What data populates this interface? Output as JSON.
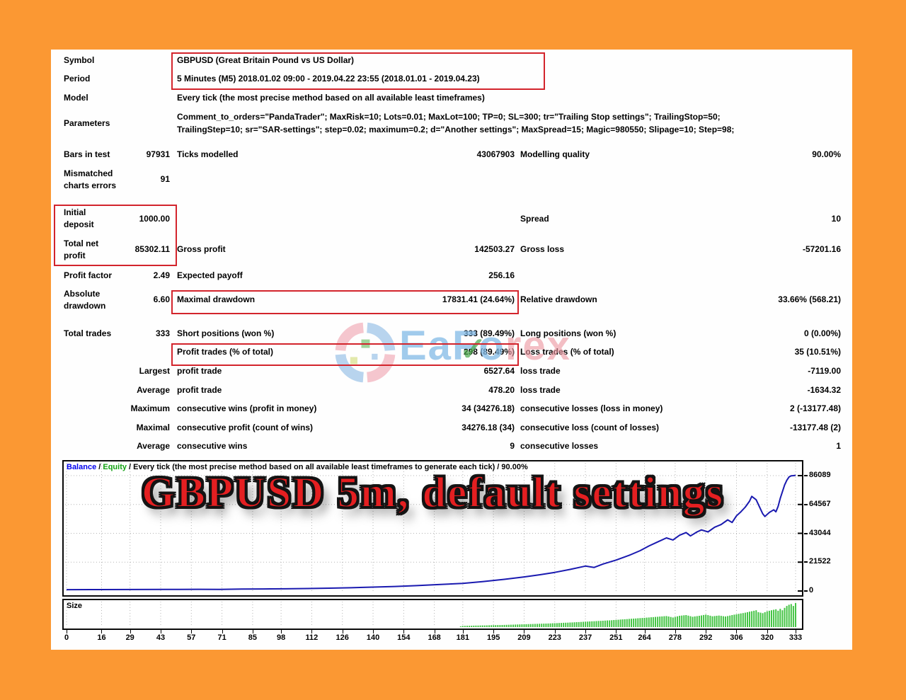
{
  "colors": {
    "background_orange": "#fb9833",
    "highlight_red": "#d3242c",
    "title_red": "#e41f21",
    "balance_blue": "#0000ee",
    "equity_green": "#12a112"
  },
  "report": {
    "symbol_label": "Symbol",
    "symbol_value": "GBPUSD (Great Britain Pound vs US Dollar)",
    "period_label": "Period",
    "period_value": "5 Minutes (M5) 2018.01.02 09:00 - 2019.04.22 23:55 (2018.01.01 - 2019.04.23)",
    "model_label": "Model",
    "model_value": "Every tick (the most precise method based on all available least timeframes)",
    "parameters_label": "Parameters",
    "parameters_line1": "Comment_to_orders=\"PandaTrader\"; MaxRisk=10; Lots=0.01; MaxLot=100; TP=0; SL=300; tr=\"Trailing Stop settings\"; TrailingStop=50;",
    "parameters_line2": "TrailingStep=10; sr=\"SAR-settings\"; step=0.02; maximum=0.2; d=\"Another settings\"; MaxSpread=15; Magic=980550; Slipage=10; Step=98;",
    "bars_label": "Bars in test",
    "bars_value": "97931",
    "ticks_label": "Ticks modelled",
    "ticks_value": "43067903",
    "quality_label": "Modelling quality",
    "quality_value": "90.00%",
    "mismatched_label": "Mismatched charts errors",
    "mismatched_value": "91",
    "initial_label": "Initial deposit",
    "initial_value": "1000.00",
    "spread_label": "Spread",
    "spread_value": "10",
    "netprofit_label": "Total net profit",
    "netprofit_value": "85302.11",
    "grossprofit_label": "Gross profit",
    "grossprofit_value": "142503.27",
    "grossloss_label": "Gross loss",
    "grossloss_value": "-57201.16",
    "pf_label": "Profit factor",
    "pf_value": "2.49",
    "payoff_label": "Expected payoff",
    "payoff_value": "256.16",
    "absdd_label": "Absolute drawdown",
    "absdd_value": "6.60",
    "maxdd_label": "Maximal drawdown",
    "maxdd_value": "17831.41 (24.64%)",
    "reldd_label": "Relative drawdown",
    "reldd_value": "33.66% (568.21)",
    "trades_label": "Total trades",
    "trades_value": "333",
    "short_label": "Short positions (won %)",
    "short_value": "333 (89.49%)",
    "long_label": "Long positions (won %)",
    "long_value": "0 (0.00%)",
    "profittrades_label": "Profit trades (% of total)",
    "profittrades_value": "298 (89.49%)",
    "losstrades_label": "Loss trades (% of total)",
    "losstrades_value": "35 (10.51%)",
    "largest_label": "Largest",
    "largest_profit_label": "profit trade",
    "largest_profit_value": "6527.64",
    "largest_loss_label": "loss trade",
    "largest_loss_value": "-7119.00",
    "average_label": "Average",
    "average_profit_label": "profit trade",
    "average_profit_value": "478.20",
    "average_loss_label": "loss trade",
    "average_loss_value": "-1634.32",
    "maximum_label": "Maximum",
    "maxwins_label": "consecutive wins (profit in money)",
    "maxwins_value": "34 (34276.18)",
    "maxlosses_label": "consecutive losses (loss in money)",
    "maxlosses_value": "2 (-13177.48)",
    "maximal_label": "Maximal",
    "maxprofit_label": "consecutive profit (count of wins)",
    "maxprofit_value": "34276.18 (34)",
    "maxloss_label": "consecutive loss (count of losses)",
    "maxloss_value": "-13177.48 (2)",
    "avgcons_label": "Average",
    "avgwins_label": "consecutive wins",
    "avgwins_value": "9",
    "avglosses_label": "consecutive losses",
    "avglosses_value": "1"
  },
  "watermark": {
    "text_left": "EaFo",
    "text_right": "rex",
    "check": "✓"
  },
  "overlay_title": "GBPUSD 5m, default settings",
  "chart_data": {
    "type": "line",
    "header": {
      "balance_label": "Balance",
      "sep1": " / ",
      "equity_label": "Equity",
      "rest": " / Every tick (the most precise method based on all available least timeframes to generate each tick) / 90.00%"
    },
    "size_label": "Size",
    "line_color": "#1a1ab0",
    "bar_color": "#45c445",
    "grid_color": "#b4b4b4",
    "x_max": 333,
    "x_ticks": [
      0,
      16,
      29,
      43,
      57,
      71,
      85,
      98,
      112,
      126,
      140,
      154,
      168,
      181,
      195,
      209,
      223,
      237,
      251,
      264,
      278,
      292,
      306,
      320,
      333
    ],
    "y_ticks": [
      86089,
      64567,
      43044,
      21522,
      0
    ],
    "ylim": [
      0,
      86089
    ],
    "balance_series": [
      [
        0,
        1000
      ],
      [
        15,
        1050
      ],
      [
        30,
        1100
      ],
      [
        45,
        1180
      ],
      [
        60,
        1250
      ],
      [
        70,
        1230
      ],
      [
        80,
        1400
      ],
      [
        90,
        1520
      ],
      [
        100,
        1650
      ],
      [
        110,
        1850
      ],
      [
        120,
        2100
      ],
      [
        130,
        2450
      ],
      [
        140,
        2900
      ],
      [
        150,
        3400
      ],
      [
        160,
        4000
      ],
      [
        170,
        4800
      ],
      [
        181,
        5700
      ],
      [
        190,
        7000
      ],
      [
        200,
        8700
      ],
      [
        209,
        10500
      ],
      [
        216,
        12100
      ],
      [
        223,
        13900
      ],
      [
        230,
        16100
      ],
      [
        237,
        18600
      ],
      [
        241,
        17600
      ],
      [
        245,
        20100
      ],
      [
        251,
        23100
      ],
      [
        257,
        26600
      ],
      [
        262,
        30100
      ],
      [
        266,
        33600
      ],
      [
        270,
        36600
      ],
      [
        274,
        39600
      ],
      [
        277,
        38100
      ],
      [
        280,
        41600
      ],
      [
        283,
        43600
      ],
      [
        285,
        41100
      ],
      [
        288,
        44100
      ],
      [
        290,
        45600
      ],
      [
        293,
        44100
      ],
      [
        296,
        47600
      ],
      [
        299,
        49600
      ],
      [
        302,
        53100
      ],
      [
        304,
        51100
      ],
      [
        306,
        56100
      ],
      [
        308,
        59100
      ],
      [
        310,
        62600
      ],
      [
        312,
        67100
      ],
      [
        313,
        70600
      ],
      [
        315,
        68100
      ],
      [
        316,
        64600
      ],
      [
        318,
        57600
      ],
      [
        319,
        55600
      ],
      [
        321,
        58600
      ],
      [
        323,
        60600
      ],
      [
        324,
        59100
      ],
      [
        325,
        63100
      ],
      [
        326,
        69100
      ],
      [
        327,
        74100
      ],
      [
        328,
        79100
      ],
      [
        329,
        82600
      ],
      [
        330,
        85100
      ],
      [
        331,
        86000
      ],
      [
        332,
        86100
      ],
      [
        333,
        86302
      ]
    ],
    "size_points": [
      [
        178,
        0.0
      ],
      [
        181,
        0.05
      ],
      [
        190,
        0.07
      ],
      [
        200,
        0.09
      ],
      [
        210,
        0.12
      ],
      [
        220,
        0.15
      ],
      [
        230,
        0.19
      ],
      [
        240,
        0.24
      ],
      [
        248,
        0.28
      ],
      [
        254,
        0.32
      ],
      [
        260,
        0.36
      ],
      [
        266,
        0.4
      ],
      [
        270,
        0.43
      ],
      [
        274,
        0.46
      ],
      [
        277,
        0.4
      ],
      [
        280,
        0.47
      ],
      [
        283,
        0.5
      ],
      [
        286,
        0.43
      ],
      [
        289,
        0.47
      ],
      [
        292,
        0.52
      ],
      [
        295,
        0.45
      ],
      [
        298,
        0.48
      ],
      [
        301,
        0.44
      ],
      [
        304,
        0.5
      ],
      [
        307,
        0.55
      ],
      [
        310,
        0.6
      ],
      [
        313,
        0.66
      ],
      [
        315,
        0.7
      ],
      [
        316,
        0.62
      ],
      [
        318,
        0.58
      ],
      [
        320,
        0.66
      ],
      [
        322,
        0.7
      ],
      [
        324,
        0.74
      ],
      [
        325,
        0.68
      ],
      [
        326,
        0.76
      ],
      [
        327,
        0.7
      ],
      [
        328,
        0.8
      ],
      [
        329,
        0.88
      ],
      [
        330,
        0.93
      ],
      [
        331,
        0.96
      ],
      [
        332,
        0.88
      ],
      [
        333,
        1.0
      ]
    ]
  }
}
